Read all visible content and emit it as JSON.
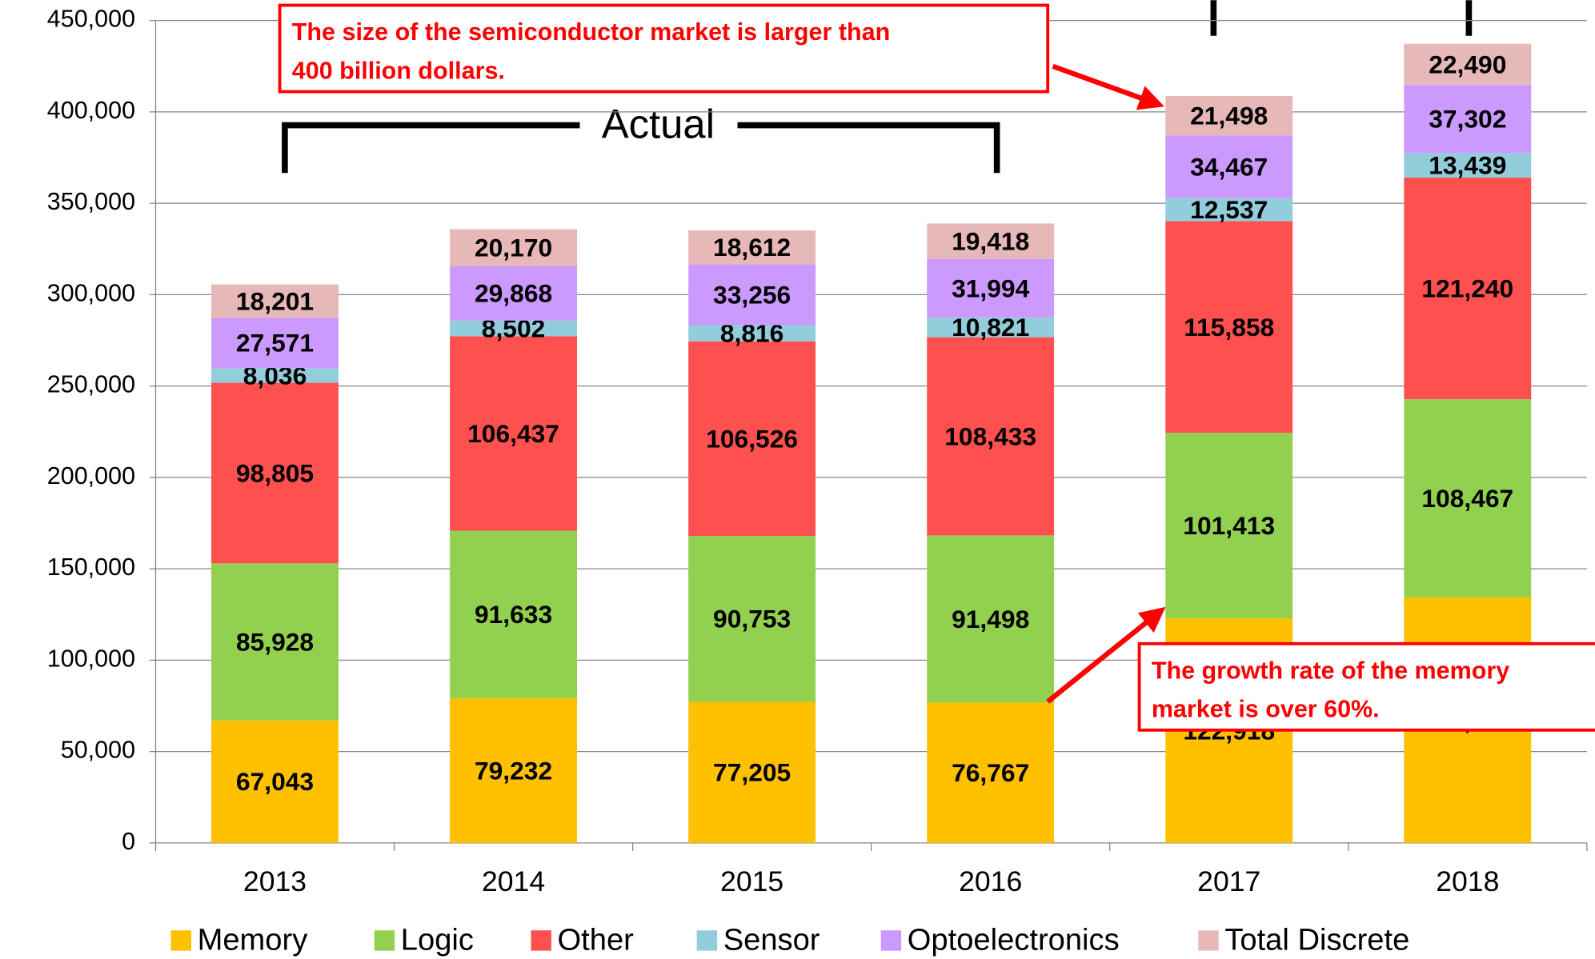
{
  "chart_data": {
    "type": "bar",
    "stacked": true,
    "categories": [
      "2013",
      "2014",
      "2015",
      "2016",
      "2017",
      "2018"
    ],
    "series": [
      {
        "name": "Memory",
        "color": "#ffc000",
        "values": [
          67043,
          79232,
          77205,
          76767,
          122918,
          134327
        ],
        "value_labels": [
          "67,043",
          "79,232",
          "77,205",
          "76,767",
          "122,918",
          "134,327"
        ]
      },
      {
        "name": "Logic",
        "color": "#92d050",
        "values": [
          85928,
          91633,
          90753,
          91498,
          101413,
          108467
        ],
        "value_labels": [
          "85,928",
          "91,633",
          "90,753",
          "91,498",
          "101,413",
          "108,467"
        ]
      },
      {
        "name": "Other",
        "color": "#ff5050",
        "values": [
          98805,
          106437,
          106526,
          108433,
          115858,
          121240
        ],
        "value_labels": [
          "98,805",
          "106,437",
          "106,526",
          "108,433",
          "115,858",
          "121,240"
        ]
      },
      {
        "name": "Sensor",
        "color": "#92cddc",
        "values": [
          8036,
          8502,
          8816,
          10821,
          12537,
          13439
        ],
        "value_labels": [
          "8,036",
          "8,502",
          "8,816",
          "10,821",
          "12,537",
          "13,439"
        ]
      },
      {
        "name": "Optoelectronics",
        "color": "#cc99ff",
        "values": [
          27571,
          29868,
          33256,
          31994,
          34467,
          37302
        ],
        "value_labels": [
          "27,571",
          "29,868",
          "33,256",
          "31,994",
          "34,467",
          "37,302"
        ]
      },
      {
        "name": "Total Discrete",
        "color": "#e6b9b8",
        "values": [
          18201,
          20170,
          18612,
          19418,
          21498,
          22490
        ],
        "value_labels": [
          "18,201",
          "20,170",
          "18,612",
          "19,418",
          "21,498",
          "22,490"
        ]
      }
    ],
    "ylim": [
      0,
      450000
    ],
    "yticks": [
      0,
      {
        "value": 50000,
        "label": "50,000"
      },
      {
        "value": 100000,
        "label": "100,000"
      },
      {
        "value": 150000,
        "label": "150,000"
      },
      {
        "value": 200000,
        "label": "200,000"
      },
      {
        "value": 250000,
        "label": "250,000"
      },
      {
        "value": 300000,
        "label": "300,000"
      },
      {
        "value": 350000,
        "label": "350,000"
      },
      {
        "value": 400000,
        "label": "400,000"
      },
      {
        "value": 450000,
        "label": "450,000"
      }
    ],
    "grid": true,
    "legend": "bottom",
    "bracket_label": "Actual",
    "annotations": [
      {
        "lines": [
          "The size of the semiconductor market is larger than",
          "400 billion dollars."
        ]
      },
      {
        "lines": [
          "The growth rate of the memory",
          "market is over 60%."
        ]
      }
    ]
  }
}
